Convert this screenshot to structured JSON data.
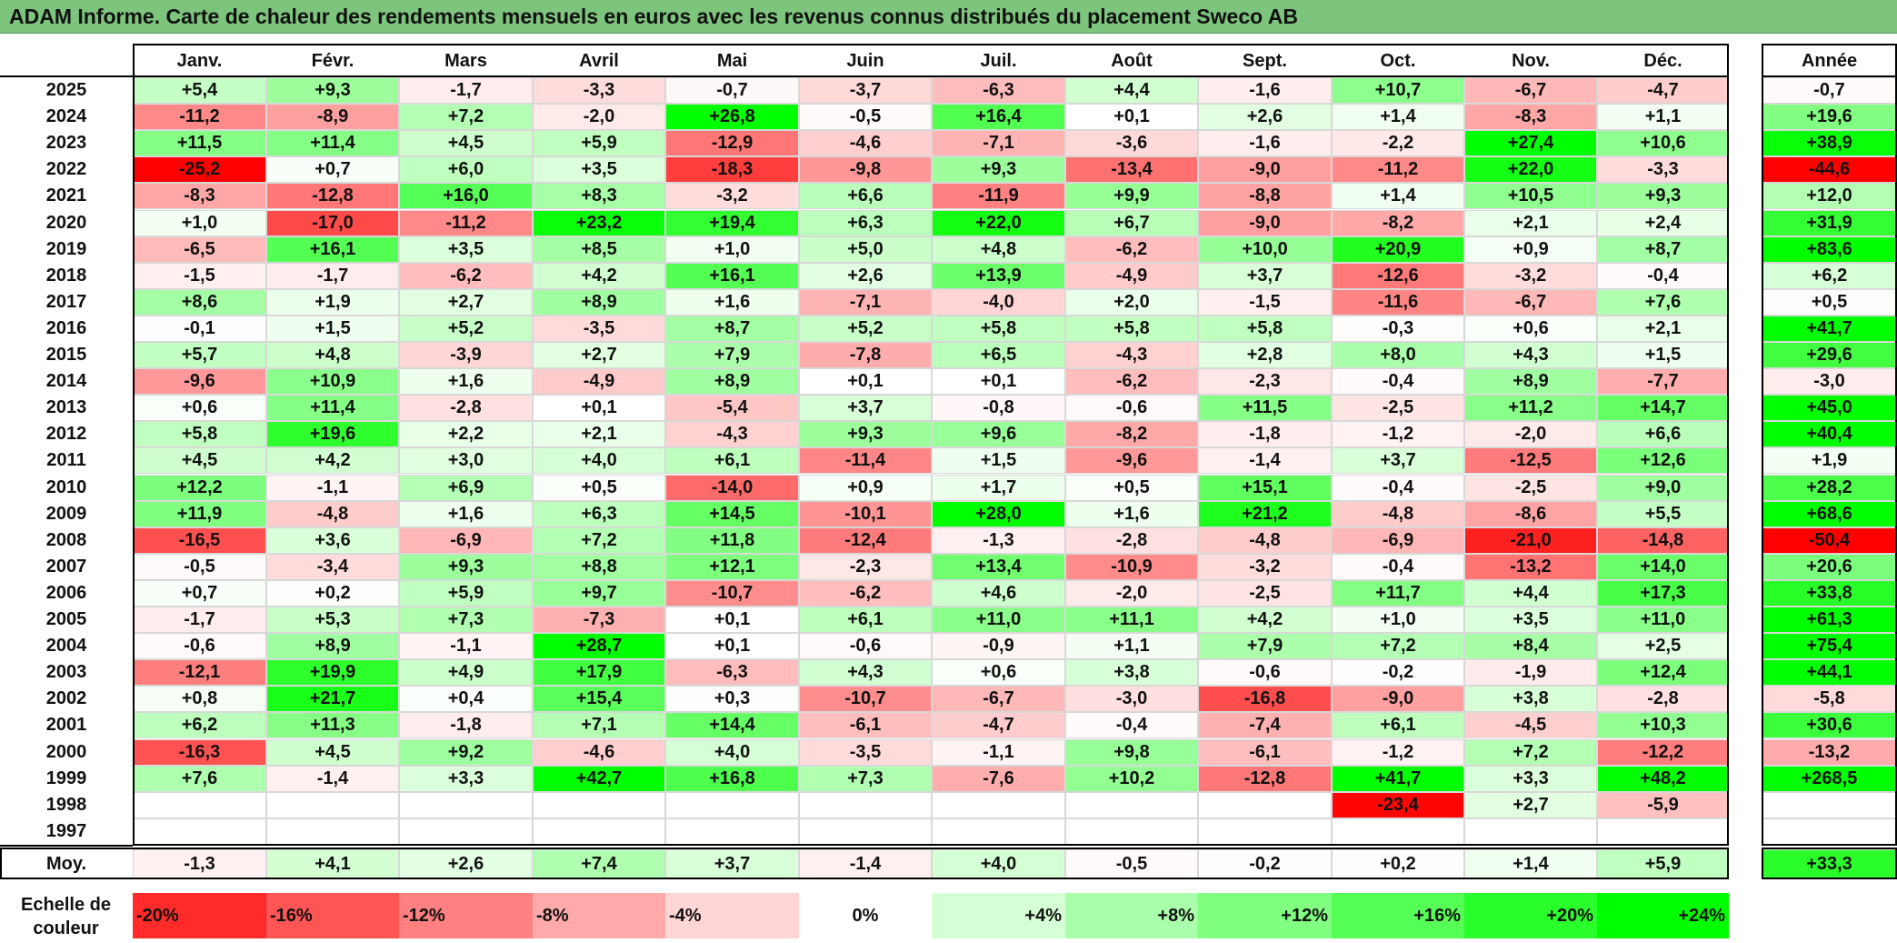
{
  "title": "ADAM Informe. Carte de chaleur des rendements mensuels en euros avec les revenus connus distribués du placement Sweco AB",
  "chart_data": {
    "type": "heatmap",
    "title": "ADAM Informe. Carte de chaleur des rendements mensuels en euros avec les revenus connus distribués du placement Sweco AB",
    "columns": [
      "Janv.",
      "Févr.",
      "Mars",
      "Avril",
      "Mai",
      "Juin",
      "Juil.",
      "Août",
      "Sept.",
      "Oct.",
      "Nov.",
      "Déc."
    ],
    "year_column": "Année",
    "rows": [
      {
        "year": "2025",
        "values": [
          "+5,4",
          "+9,3",
          "-1,7",
          "-3,3",
          "-0,7",
          "-3,7",
          "-6,3",
          "+4,4",
          "-1,6",
          "+10,7",
          "-6,7",
          "-4,7"
        ],
        "annual": "-0,7"
      },
      {
        "year": "2024",
        "values": [
          "-11,2",
          "-8,9",
          "+7,2",
          "-2,0",
          "+26,8",
          "-0,5",
          "+16,4",
          "+0,1",
          "+2,6",
          "+1,4",
          "-8,3",
          "+1,1"
        ],
        "annual": "+19,6"
      },
      {
        "year": "2023",
        "values": [
          "+11,5",
          "+11,4",
          "+4,5",
          "+5,9",
          "-12,9",
          "-4,6",
          "-7,1",
          "-3,6",
          "-1,6",
          "-2,2",
          "+27,4",
          "+10,6"
        ],
        "annual": "+38,9"
      },
      {
        "year": "2022",
        "values": [
          "-25,2",
          "+0,7",
          "+6,0",
          "+3,5",
          "-18,3",
          "-9,8",
          "+9,3",
          "-13,4",
          "-9,0",
          "-11,2",
          "+22,0",
          "-3,3"
        ],
        "annual": "-44,6"
      },
      {
        "year": "2021",
        "values": [
          "-8,3",
          "-12,8",
          "+16,0",
          "+8,3",
          "-3,2",
          "+6,6",
          "-11,9",
          "+9,9",
          "-8,8",
          "+1,4",
          "+10,5",
          "+9,3"
        ],
        "annual": "+12,0"
      },
      {
        "year": "2020",
        "values": [
          "+1,0",
          "-17,0",
          "-11,2",
          "+23,2",
          "+19,4",
          "+6,3",
          "+22,0",
          "+6,7",
          "-9,0",
          "-8,2",
          "+2,1",
          "+2,4"
        ],
        "annual": "+31,9"
      },
      {
        "year": "2019",
        "values": [
          "-6,5",
          "+16,1",
          "+3,5",
          "+8,5",
          "+1,0",
          "+5,0",
          "+4,8",
          "-6,2",
          "+10,0",
          "+20,9",
          "+0,9",
          "+8,7"
        ],
        "annual": "+83,6"
      },
      {
        "year": "2018",
        "values": [
          "-1,5",
          "-1,7",
          "-6,2",
          "+4,2",
          "+16,1",
          "+2,6",
          "+13,9",
          "-4,9",
          "+3,7",
          "-12,6",
          "-3,2",
          "-0,4"
        ],
        "annual": "+6,2"
      },
      {
        "year": "2017",
        "values": [
          "+8,6",
          "+1,9",
          "+2,7",
          "+8,9",
          "+1,6",
          "-7,1",
          "-4,0",
          "+2,0",
          "-1,5",
          "-11,6",
          "-6,7",
          "+7,6"
        ],
        "annual": "+0,5"
      },
      {
        "year": "2016",
        "values": [
          "-0,1",
          "+1,5",
          "+5,2",
          "-3,5",
          "+8,7",
          "+5,2",
          "+5,8",
          "+5,8",
          "+5,8",
          "-0,3",
          "+0,6",
          "+2,1"
        ],
        "annual": "+41,7"
      },
      {
        "year": "2015",
        "values": [
          "+5,7",
          "+4,8",
          "-3,9",
          "+2,7",
          "+7,9",
          "-7,8",
          "+6,5",
          "-4,3",
          "+2,8",
          "+8,0",
          "+4,3",
          "+1,5"
        ],
        "annual": "+29,6"
      },
      {
        "year": "2014",
        "values": [
          "-9,6",
          "+10,9",
          "+1,6",
          "-4,9",
          "+8,9",
          "+0,1",
          "+0,1",
          "-6,2",
          "-2,3",
          "-0,4",
          "+8,9",
          "-7,7"
        ],
        "annual": "-3,0"
      },
      {
        "year": "2013",
        "values": [
          "+0,6",
          "+11,4",
          "-2,8",
          "+0,1",
          "-5,4",
          "+3,7",
          "-0,8",
          "-0,6",
          "+11,5",
          "-2,5",
          "+11,2",
          "+14,7"
        ],
        "annual": "+45,0"
      },
      {
        "year": "2012",
        "values": [
          "+5,8",
          "+19,6",
          "+2,2",
          "+2,1",
          "-4,3",
          "+9,3",
          "+9,6",
          "-8,2",
          "-1,8",
          "-1,2",
          "-2,0",
          "+6,6"
        ],
        "annual": "+40,4"
      },
      {
        "year": "2011",
        "values": [
          "+4,5",
          "+4,2",
          "+3,0",
          "+4,0",
          "+6,1",
          "-11,4",
          "+1,5",
          "-9,6",
          "-1,4",
          "+3,7",
          "-12,5",
          "+12,6"
        ],
        "annual": "+1,9"
      },
      {
        "year": "2010",
        "values": [
          "+12,2",
          "-1,1",
          "+6,9",
          "+0,5",
          "-14,0",
          "+0,9",
          "+1,7",
          "+0,5",
          "+15,1",
          "-0,4",
          "-2,5",
          "+9,0"
        ],
        "annual": "+28,2"
      },
      {
        "year": "2009",
        "values": [
          "+11,9",
          "-4,8",
          "+1,6",
          "+6,3",
          "+14,5",
          "-10,1",
          "+28,0",
          "+1,6",
          "+21,2",
          "-4,8",
          "-8,6",
          "+5,5"
        ],
        "annual": "+68,6"
      },
      {
        "year": "2008",
        "values": [
          "-16,5",
          "+3,6",
          "-6,9",
          "+7,2",
          "+11,8",
          "-12,4",
          "-1,3",
          "-2,8",
          "-4,8",
          "-6,9",
          "-21,0",
          "-14,8"
        ],
        "annual": "-50,4"
      },
      {
        "year": "2007",
        "values": [
          "-0,5",
          "-3,4",
          "+9,3",
          "+8,8",
          "+12,1",
          "-2,3",
          "+13,4",
          "-10,9",
          "-3,2",
          "-0,4",
          "-13,2",
          "+14,0"
        ],
        "annual": "+20,6"
      },
      {
        "year": "2006",
        "values": [
          "+0,7",
          "+0,2",
          "+5,9",
          "+9,7",
          "-10,7",
          "-6,2",
          "+4,6",
          "-2,0",
          "-2,5",
          "+11,7",
          "+4,4",
          "+17,3"
        ],
        "annual": "+33,8"
      },
      {
        "year": "2005",
        "values": [
          "-1,7",
          "+5,3",
          "+7,3",
          "-7,3",
          "+0,1",
          "+6,1",
          "+11,0",
          "+11,1",
          "+4,2",
          "+1,0",
          "+3,5",
          "+11,0"
        ],
        "annual": "+61,3"
      },
      {
        "year": "2004",
        "values": [
          "-0,6",
          "+8,9",
          "-1,1",
          "+28,7",
          "+0,1",
          "-0,6",
          "-0,9",
          "+1,1",
          "+7,9",
          "+7,2",
          "+8,4",
          "+2,5"
        ],
        "annual": "+75,4"
      },
      {
        "year": "2003",
        "values": [
          "-12,1",
          "+19,9",
          "+4,9",
          "+17,9",
          "-6,3",
          "+4,3",
          "+0,6",
          "+3,8",
          "-0,6",
          "-0,2",
          "-1,9",
          "+12,4"
        ],
        "annual": "+44,1"
      },
      {
        "year": "2002",
        "values": [
          "+0,8",
          "+21,7",
          "+0,4",
          "+15,4",
          "+0,3",
          "-10,7",
          "-6,7",
          "-3,0",
          "-16,8",
          "-9,0",
          "+3,8",
          "-2,8"
        ],
        "annual": "-5,8"
      },
      {
        "year": "2001",
        "values": [
          "+6,2",
          "+11,3",
          "-1,8",
          "+7,1",
          "+14,4",
          "-6,1",
          "-4,7",
          "-0,4",
          "-7,4",
          "+6,1",
          "-4,5",
          "+10,3"
        ],
        "annual": "+30,6"
      },
      {
        "year": "2000",
        "values": [
          "-16,3",
          "+4,5",
          "+9,2",
          "-4,6",
          "+4,0",
          "-3,5",
          "-1,1",
          "+9,8",
          "-6,1",
          "-1,2",
          "+7,2",
          "-12,2"
        ],
        "annual": "-13,2"
      },
      {
        "year": "1999",
        "values": [
          "+7,6",
          "-1,4",
          "+3,3",
          "+42,7",
          "+16,8",
          "+7,3",
          "-7,6",
          "+10,2",
          "-12,8",
          "+41,7",
          "+3,3",
          "+48,2"
        ],
        "annual": "+268,5"
      },
      {
        "year": "1998",
        "values": [
          "",
          "",
          "",
          "",
          "",
          "",
          "",
          "",
          "",
          "-23,4",
          "+2,7",
          "-5,9"
        ],
        "annual": ""
      },
      {
        "year": "1997",
        "values": [
          "",
          "",
          "",
          "",
          "",
          "",
          "",
          "",
          "",
          "",
          "",
          ""
        ],
        "annual": ""
      }
    ],
    "average_row": {
      "label": "Moy.",
      "values": [
        "-1,3",
        "+4,1",
        "+2,6",
        "+7,4",
        "+3,7",
        "-1,4",
        "+4,0",
        "-0,5",
        "-0,2",
        "+0,2",
        "+1,4",
        "+5,9"
      ],
      "annual": "+33,3"
    },
    "color_scale": {
      "label": "Echelle de couleur",
      "steps": [
        {
          "label": "-20%",
          "value": -20
        },
        {
          "label": "-16%",
          "value": -16
        },
        {
          "label": "-12%",
          "value": -12
        },
        {
          "label": "-8%",
          "value": -8
        },
        {
          "label": "-4%",
          "value": -4
        },
        {
          "label": "0%",
          "value": 0
        },
        {
          "label": "+4%",
          "value": 4
        },
        {
          "label": "+8%",
          "value": 8
        },
        {
          "label": "+12%",
          "value": 12
        },
        {
          "label": "+16%",
          "value": 16
        },
        {
          "label": "+20%",
          "value": 20
        },
        {
          "label": "+24%",
          "value": 24
        }
      ],
      "negative_color": "#ff0000",
      "neutral_color": "#ffffff",
      "positive_color": "#00ff00"
    }
  }
}
